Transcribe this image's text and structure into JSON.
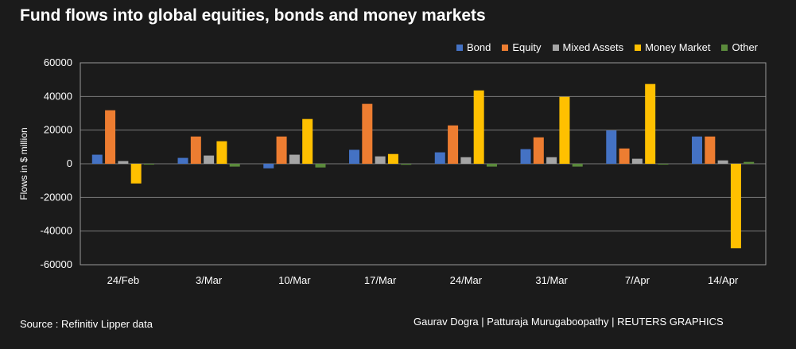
{
  "chart_data": {
    "type": "bar",
    "title": "Fund flows into global equities, bonds and money markets",
    "xlabel": "",
    "ylabel": "Flows in $ million",
    "ylim": [
      -60000,
      60000
    ],
    "yticks": [
      60000,
      40000,
      20000,
      0,
      -20000,
      -40000,
      -60000
    ],
    "grid": true,
    "legend_position": "top-right",
    "categories": [
      "24/Feb",
      "3/Mar",
      "10/Mar",
      "17/Mar",
      "24/Mar",
      "31/Mar",
      "7/Apr",
      "14/Apr"
    ],
    "series": [
      {
        "name": "Bond",
        "color": "#4472c4",
        "values": [
          5400,
          3500,
          -2700,
          8300,
          6800,
          8700,
          19800,
          16200
        ]
      },
      {
        "name": "Equity",
        "color": "#ed7d31",
        "values": [
          31800,
          16200,
          16200,
          35600,
          22800,
          15700,
          9100,
          16200
        ]
      },
      {
        "name": "Mixed Assets",
        "color": "#a5a5a5",
        "values": [
          1600,
          4900,
          5400,
          4400,
          3900,
          3900,
          3000,
          2000
        ]
      },
      {
        "name": "Money Market",
        "color": "#ffc000",
        "values": [
          -11700,
          13400,
          26600,
          5800,
          43600,
          39800,
          47400,
          -50200
        ]
      },
      {
        "name": "Other",
        "color": "#5b8a3c",
        "values": [
          -500,
          -1700,
          -2200,
          -600,
          -1700,
          -1700,
          -500,
          1100
        ]
      }
    ]
  },
  "footer": {
    "source": "Source : Refinitiv Lipper data",
    "credit": "Gaurav Dogra | Patturaja Murugaboopathy | REUTERS GRAPHICS"
  }
}
